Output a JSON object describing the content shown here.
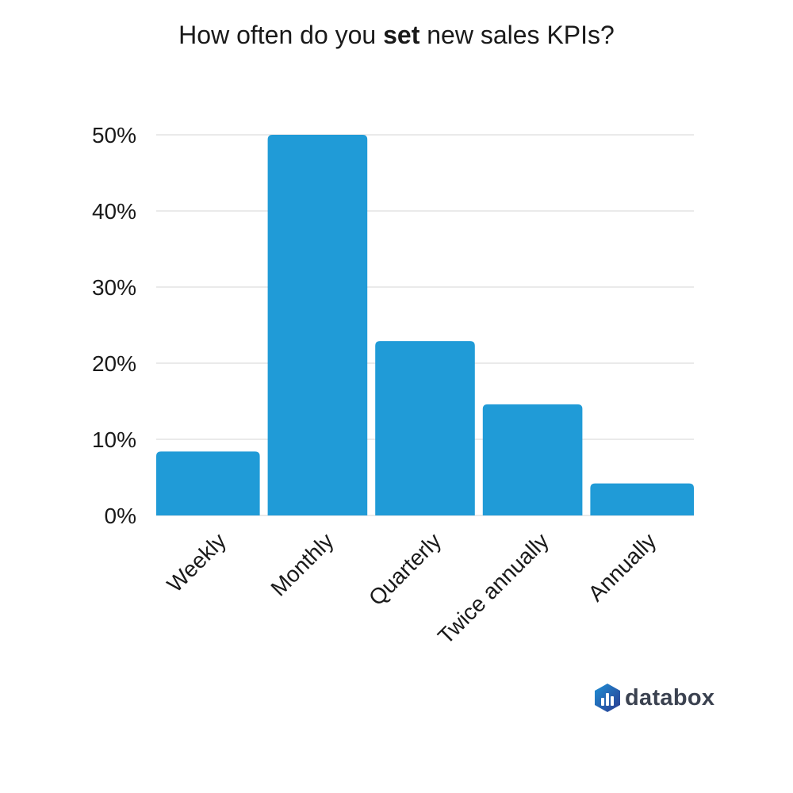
{
  "title": {
    "prefix": "How often do you ",
    "emphasis": "set",
    "suffix": " new sales KPIs?"
  },
  "brand": {
    "name": "databox",
    "icon": "databox-hexagon-icon",
    "colors": [
      "#2b3a8f",
      "#1e90d6"
    ]
  },
  "chart_data": {
    "type": "bar",
    "categories": [
      "Weekly",
      "Monthly",
      "Quarterly",
      "Twice annually",
      "Annually"
    ],
    "values": [
      8.4,
      50.0,
      22.9,
      14.6,
      4.2
    ],
    "y_ticks": [
      "0%",
      "10%",
      "20%",
      "30%",
      "40%",
      "50%"
    ],
    "ylim": [
      0,
      50
    ],
    "grid": true,
    "bar_color": "#209bd7",
    "grid_color": "#d6d6d6"
  }
}
